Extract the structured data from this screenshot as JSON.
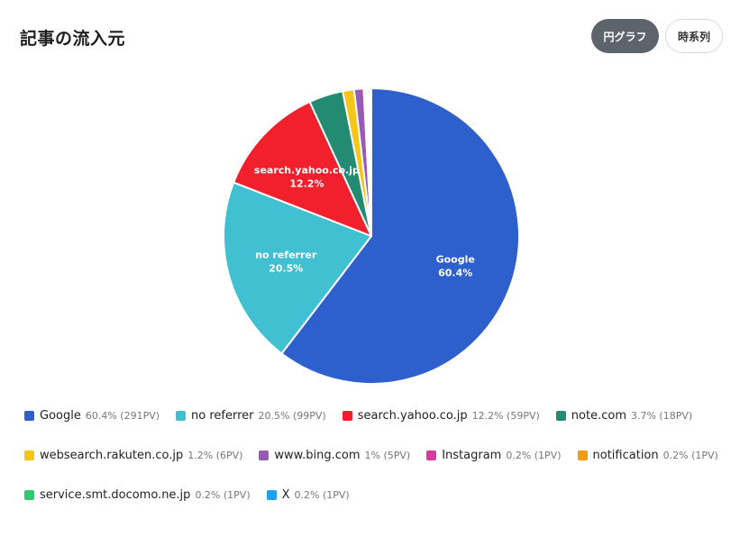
{
  "header": {
    "title": "記事の流入元",
    "view_pie_label": "円グラフ",
    "view_timeseries_label": "時系列"
  },
  "chart_data": {
    "type": "pie",
    "series": [
      {
        "name": "Google",
        "percent_label": "60.4%",
        "pv_label": "(291PV)",
        "value": 291,
        "color": "#2d5fcd"
      },
      {
        "name": "no referrer",
        "percent_label": "20.5%",
        "pv_label": "(99PV)",
        "value": 99,
        "color": "#40c0d0"
      },
      {
        "name": "search.yahoo.co.jp",
        "percent_label": "12.2%",
        "pv_label": "(59PV)",
        "value": 59,
        "color": "#f21f2d"
      },
      {
        "name": "note.com",
        "percent_label": "3.7%",
        "pv_label": "(18PV)",
        "value": 18,
        "color": "#228b72"
      },
      {
        "name": "websearch.rakuten.co.jp",
        "percent_label": "1.2%",
        "pv_label": "(6PV)",
        "value": 6,
        "color": "#f5c518"
      },
      {
        "name": "www.bing.com",
        "percent_label": "1%",
        "pv_label": "(5PV)",
        "value": 5,
        "color": "#9b59b6"
      },
      {
        "name": "Instagram",
        "percent_label": "0.2%",
        "pv_label": "(1PV)",
        "value": 1,
        "color": "#d63a9b"
      },
      {
        "name": "notification",
        "percent_label": "0.2%",
        "pv_label": "(1PV)",
        "value": 1,
        "color": "#f39c12"
      },
      {
        "name": "service.smt.docomo.ne.jp",
        "percent_label": "0.2%",
        "pv_label": "(1PV)",
        "value": 1,
        "color": "#2ecc71"
      },
      {
        "name": "X",
        "percent_label": "0.2%",
        "pv_label": "(1PV)",
        "value": 1,
        "color": "#1da1f2"
      }
    ],
    "slice_labels": [
      {
        "name": "Google",
        "text": "60.4%"
      },
      {
        "name": "no referrer",
        "text": "20.5%"
      },
      {
        "name": "search.yahoo.co.jp",
        "text": "12.2%"
      }
    ],
    "legend_position": "bottom",
    "legend_rows": [
      [
        0,
        1,
        2,
        3
      ],
      [
        4,
        5,
        6,
        7
      ],
      [
        8,
        9
      ]
    ]
  }
}
